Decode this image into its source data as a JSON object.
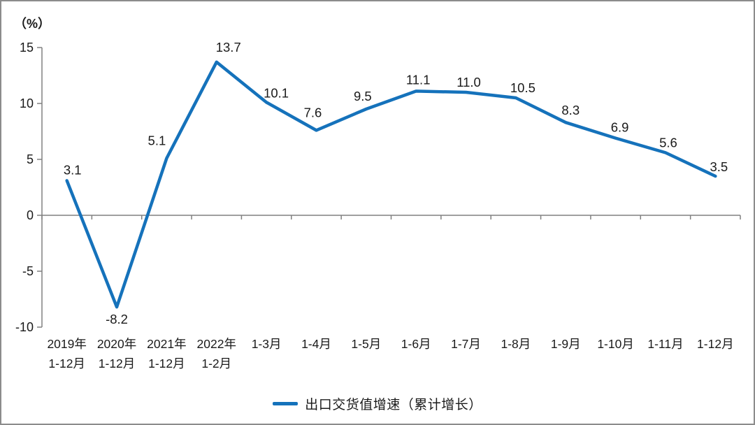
{
  "unit_label": "（%）",
  "chart_data": {
    "type": "line",
    "title": "",
    "xlabel": "",
    "ylabel": "（%）",
    "legend": "出口交货值增速（累计增长）",
    "legend_position": "bottom",
    "grid": false,
    "ylim": [
      -10,
      15
    ],
    "line_color": "#1572BB",
    "axis_color": "#808080",
    "label_color": "#1a1a1a",
    "categories": [
      {
        "line1": "2019年",
        "line2": "1-12月"
      },
      {
        "line1": "2020年",
        "line2": "1-12月"
      },
      {
        "line1": "2021年",
        "line2": "1-12月"
      },
      {
        "line1": "2022年",
        "line2": "1-2月"
      },
      {
        "line1": "1-3月",
        "line2": ""
      },
      {
        "line1": "1-4月",
        "line2": ""
      },
      {
        "line1": "1-5月",
        "line2": ""
      },
      {
        "line1": "1-6月",
        "line2": ""
      },
      {
        "line1": "1-7月",
        "line2": ""
      },
      {
        "line1": "1-8月",
        "line2": ""
      },
      {
        "line1": "1-9月",
        "line2": ""
      },
      {
        "line1": "1-10月",
        "line2": ""
      },
      {
        "line1": "1-11月",
        "line2": ""
      },
      {
        "line1": "1-12月",
        "line2": ""
      }
    ],
    "values": [
      3.1,
      -8.2,
      5.1,
      13.7,
      10.1,
      7.6,
      9.5,
      11.1,
      11.0,
      10.5,
      8.3,
      6.9,
      5.6,
      3.5
    ],
    "point_labels": [
      "3.1",
      "-8.2",
      "5.1",
      "13.7",
      "10.1",
      "7.6",
      "9.5",
      "11.1",
      "11.0",
      "10.5",
      "8.3",
      "6.9",
      "5.6",
      "3.5"
    ],
    "label_offsets_dx": [
      8,
      0,
      -14,
      17,
      14,
      -5,
      -5,
      3,
      4,
      10,
      7,
      6,
      4,
      5
    ],
    "label_offsets_dy": [
      -9,
      24,
      -19,
      -15,
      -7,
      -19,
      -12,
      -10,
      -8,
      -8,
      -11,
      -9,
      -8,
      -7
    ],
    "y_ticks": [
      {
        "v": 15,
        "label": "15"
      },
      {
        "v": 10,
        "label": "10"
      },
      {
        "v": 5,
        "label": "5"
      },
      {
        "v": 0,
        "label": "0"
      },
      {
        "v": -5,
        "label": "-5"
      },
      {
        "v": -10,
        "label": "-10"
      }
    ]
  }
}
